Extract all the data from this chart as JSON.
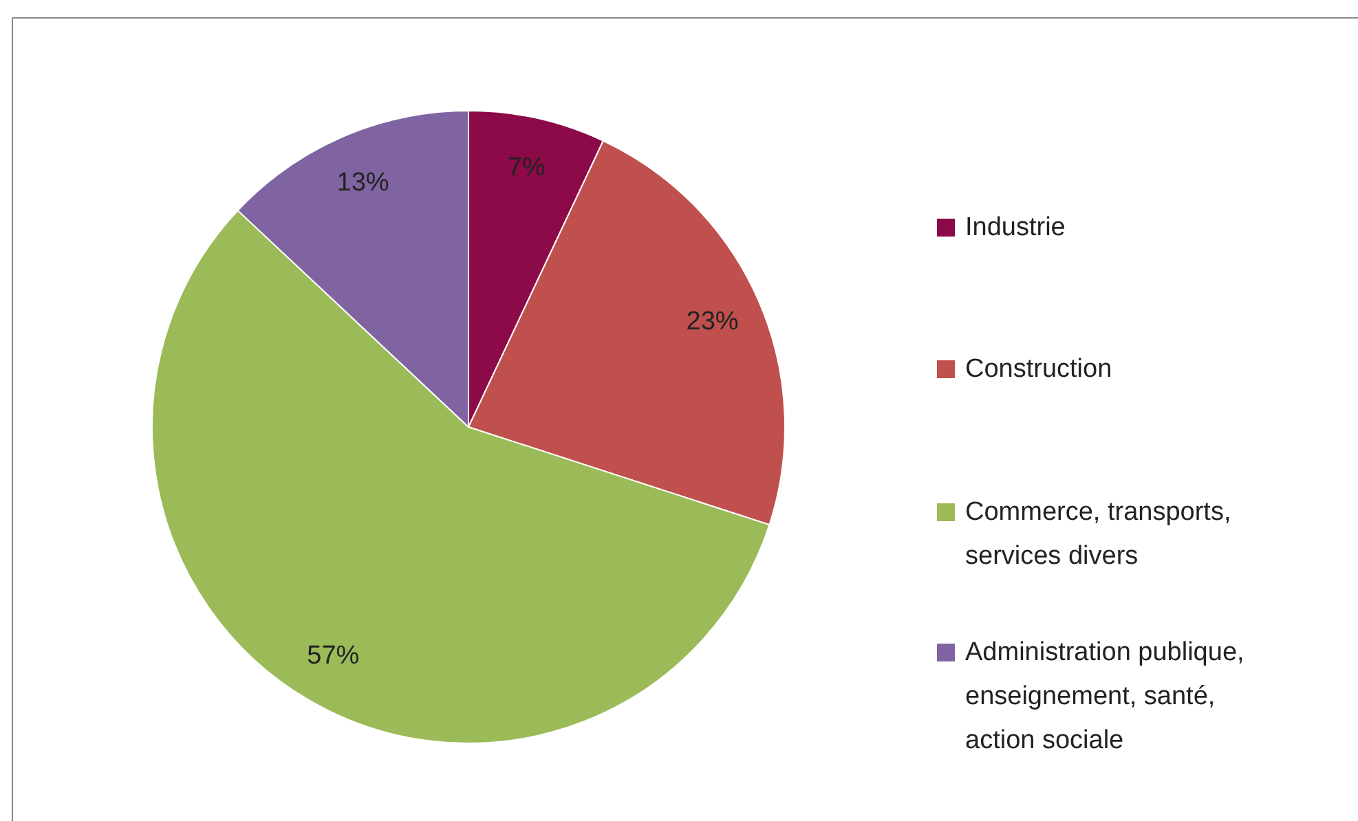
{
  "chart_data": {
    "type": "pie",
    "categories": [
      "Industrie",
      "Construction",
      "Commerce, transports, services divers",
      "Administration publique, enseignement, santé, action sociale"
    ],
    "values": [
      7,
      23,
      57,
      13
    ],
    "colors": [
      "#8b0a47",
      "#c0504d",
      "#9bbb59",
      "#8064a2"
    ],
    "value_labels": [
      "7%",
      "23%",
      "57%",
      "13%"
    ],
    "legend": "right"
  }
}
